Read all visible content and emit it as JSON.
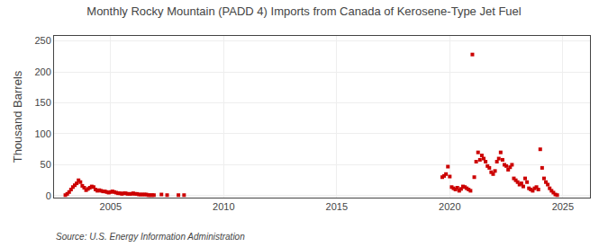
{
  "chart_data": {
    "type": "scatter",
    "title": "Monthly Rocky Mountain (PADD 4) Imports from Canada of Kerosene-Type Jet Fuel",
    "y_label": "Thousand Barrels",
    "annotations": [
      "Source: U.S. Energy Information Administration"
    ],
    "color": "#cc0000",
    "marker": "square",
    "grid": true,
    "xlim": [
      2002.5,
      2026.2
    ],
    "ylim": [
      -3,
      258
    ],
    "xticks": [
      2005,
      2010,
      2015,
      2020,
      2025
    ],
    "yticks": [
      0,
      50,
      100,
      150,
      200,
      250
    ],
    "x": [
      2003.0,
      2003.083,
      2003.167,
      2003.25,
      2003.333,
      2003.417,
      2003.5,
      2003.583,
      2003.667,
      2003.75,
      2003.833,
      2003.917,
      2004.0,
      2004.083,
      2004.167,
      2004.25,
      2004.333,
      2004.417,
      2004.5,
      2004.583,
      2004.667,
      2004.75,
      2004.833,
      2004.917,
      2005.0,
      2005.083,
      2005.167,
      2005.25,
      2005.333,
      2005.417,
      2005.5,
      2005.583,
      2005.667,
      2005.75,
      2005.833,
      2005.917,
      2006.0,
      2006.083,
      2006.167,
      2006.25,
      2006.333,
      2006.417,
      2006.5,
      2006.583,
      2006.667,
      2006.75,
      2006.833,
      2006.917,
      2007.25,
      2007.5,
      2008.0,
      2008.25,
      2019.667,
      2019.75,
      2019.833,
      2019.917,
      2020.0,
      2020.083,
      2020.167,
      2020.25,
      2020.333,
      2020.417,
      2020.5,
      2020.583,
      2020.667,
      2020.75,
      2020.833,
      2020.917,
      2021.0,
      2021.083,
      2021.167,
      2021.25,
      2021.333,
      2021.417,
      2021.5,
      2021.583,
      2021.667,
      2021.75,
      2021.833,
      2021.917,
      2022.0,
      2022.083,
      2022.167,
      2022.25,
      2022.333,
      2022.417,
      2022.5,
      2022.583,
      2022.667,
      2022.75,
      2022.833,
      2022.917,
      2023.0,
      2023.083,
      2023.167,
      2023.25,
      2023.333,
      2023.417,
      2023.5,
      2023.583,
      2023.667,
      2023.75,
      2023.833,
      2023.917,
      2024.0,
      2024.083,
      2024.167,
      2024.25,
      2024.333,
      2024.417,
      2024.5,
      2024.583,
      2024.667,
      2024.75
    ],
    "values": [
      1.0,
      3.0,
      6.0,
      10.0,
      14.0,
      17.0,
      20.0,
      25.0,
      22.0,
      16.0,
      13.0,
      9.0,
      11.0,
      13.0,
      15.0,
      14.0,
      10.0,
      8.0,
      9.0,
      8.0,
      7.0,
      7.0,
      6.0,
      5.0,
      6.0,
      7.0,
      6.0,
      5.0,
      4.0,
      4.0,
      3.0,
      4.0,
      4.0,
      3.0,
      3.0,
      3.0,
      4.0,
      3.0,
      3.0,
      2.0,
      2.0,
      2.0,
      2.0,
      2.0,
      1.0,
      1.0,
      1.0,
      1.0,
      2.0,
      1.0,
      1.0,
      1.0,
      30.0,
      32.0,
      35.0,
      47.0,
      31.0,
      14.0,
      12.0,
      10.0,
      13.0,
      8.0,
      11.0,
      15.0,
      14.0,
      12.0,
      10.0,
      8.0,
      228.0,
      30.0,
      55.0,
      70.0,
      58.0,
      65.0,
      60.0,
      55.0,
      48.0,
      45.0,
      38.0,
      35.0,
      40.0,
      55.0,
      60.0,
      70.0,
      58.0,
      50.0,
      48.0,
      42.0,
      46.0,
      50.0,
      28.0,
      25.0,
      22.0,
      18.0,
      20.0,
      15.0,
      28.0,
      22.0,
      12.0,
      10.0,
      8.0,
      12.0,
      14.0,
      10.0,
      75.0,
      45.0,
      28.0,
      22.0,
      18.0,
      12.0,
      8.0,
      5.0,
      2.0,
      1.0
    ]
  }
}
